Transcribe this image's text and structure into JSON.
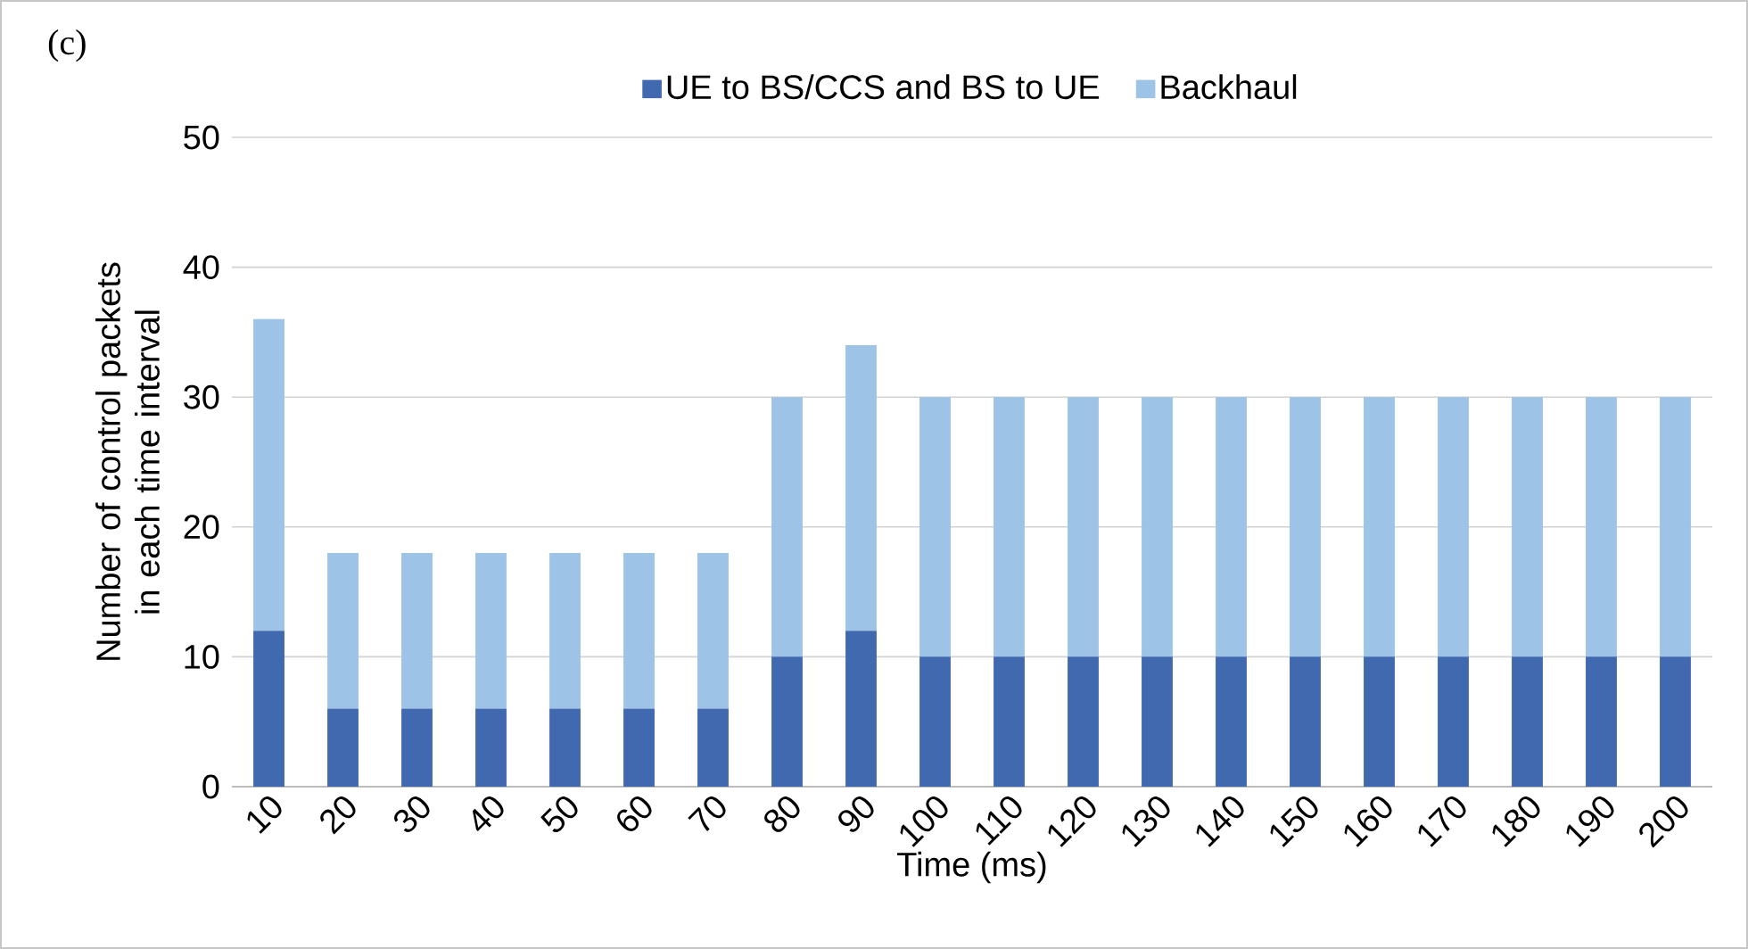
{
  "chart_data": {
    "type": "bar",
    "stacked": true,
    "categories": [
      "10",
      "20",
      "30",
      "40",
      "50",
      "60",
      "70",
      "80",
      "90",
      "100",
      "110",
      "120",
      "130",
      "140",
      "150",
      "160",
      "170",
      "180",
      "190",
      "200"
    ],
    "series": [
      {
        "name": "UE to BS/CCS and BS to UE",
        "color": "#4169b0",
        "values": [
          12,
          6,
          6,
          6,
          6,
          6,
          6,
          10,
          12,
          10,
          10,
          10,
          10,
          10,
          10,
          10,
          10,
          10,
          10,
          10
        ]
      },
      {
        "name": "Backhaul",
        "color": "#9dc3e6",
        "values": [
          24,
          12,
          12,
          12,
          12,
          12,
          12,
          20,
          22,
          20,
          20,
          20,
          20,
          20,
          20,
          20,
          20,
          20,
          20,
          20
        ]
      }
    ],
    "ylim": [
      0,
      50
    ],
    "yticks": [
      0,
      10,
      20,
      30,
      40,
      50
    ],
    "grid": "y",
    "legend": "top",
    "xlabel": "Time (ms)",
    "ylabel": "Number of control packets in each time interval",
    "annotations": [
      "(c)"
    ]
  }
}
